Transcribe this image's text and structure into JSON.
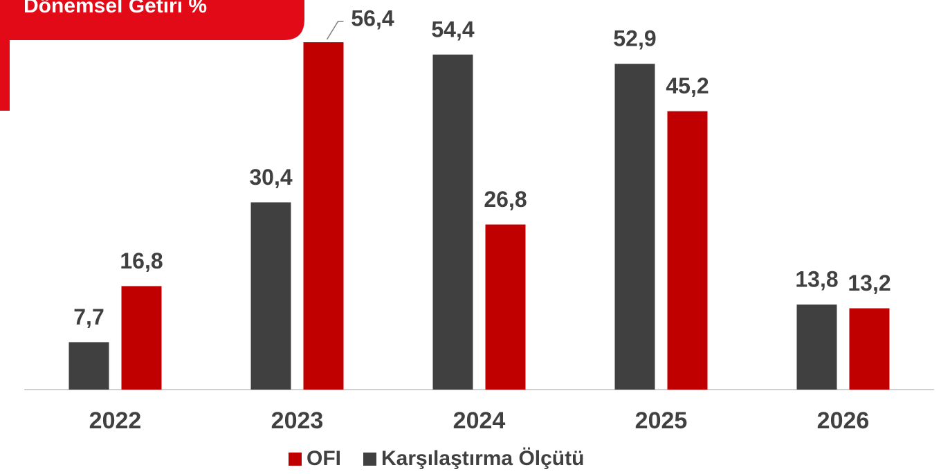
{
  "chart_data": {
    "type": "bar",
    "title": "Dönemsel Getiri %",
    "categories": [
      "2022",
      "2023",
      "2024",
      "2025",
      "2026"
    ],
    "series": [
      {
        "name": "Karşılaştırma Ölçütü",
        "color": "#404040",
        "values": [
          7.7,
          30.4,
          54.4,
          52.9,
          13.8
        ],
        "value_labels": [
          "7,7",
          "30,4",
          "54,4",
          "52,9",
          "13,8"
        ]
      },
      {
        "name": "OFI",
        "color": "#c00000",
        "values": [
          16.8,
          56.4,
          26.8,
          45.2,
          13.2
        ],
        "value_labels": [
          "16,8",
          "56,4",
          "26,8",
          "45,2",
          "13,2"
        ]
      }
    ],
    "ylim": [
      0,
      60
    ]
  }
}
